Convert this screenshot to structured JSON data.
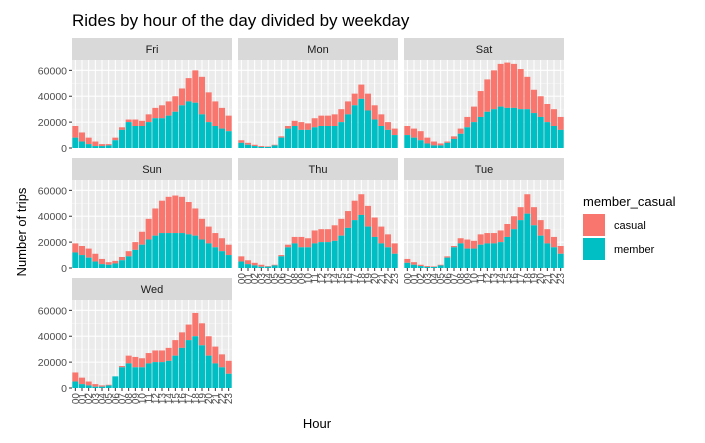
{
  "chart_data": {
    "type": "bar",
    "stacked": true,
    "faceted_by": "weekday",
    "title": "Rides by hour of the day divided by weekday",
    "xlabel": "Hour",
    "ylabel": "Number of trips",
    "ylim": [
      0,
      68000
    ],
    "yticks": [
      0,
      20000,
      40000,
      60000
    ],
    "grid": true,
    "legend": {
      "title": "member_casual",
      "position": "right",
      "items": [
        {
          "label": "casual",
          "color": "#F8766D"
        },
        {
          "label": "member",
          "color": "#00BFC4"
        }
      ]
    },
    "categories": [
      "00",
      "01",
      "02",
      "03",
      "04",
      "05",
      "06",
      "07",
      "08",
      "09",
      "10",
      "11",
      "12",
      "13",
      "14",
      "15",
      "16",
      "17",
      "18",
      "19",
      "20",
      "21",
      "22",
      "23"
    ],
    "facets": [
      {
        "name": "Fri",
        "member": [
          8000,
          5000,
          3000,
          1500,
          1500,
          2000,
          6000,
          14000,
          20000,
          17000,
          17000,
          20000,
          23000,
          23000,
          25000,
          28000,
          33000,
          36000,
          35000,
          26000,
          20000,
          17000,
          15000,
          13000
        ],
        "total": [
          17000,
          12000,
          8000,
          5000,
          3000,
          3000,
          8000,
          16000,
          22000,
          22000,
          21000,
          26000,
          31000,
          33000,
          36000,
          40000,
          46000,
          54000,
          60000,
          55000,
          43000,
          36000,
          31000,
          25000
        ]
      },
      {
        "name": "Mon",
        "member": [
          4000,
          2500,
          1500,
          800,
          800,
          2000,
          8000,
          15000,
          17000,
          14000,
          14000,
          16000,
          17000,
          17000,
          17000,
          20000,
          26000,
          33000,
          38000,
          29000,
          22000,
          17000,
          14000,
          10000
        ],
        "total": [
          6000,
          4000,
          2500,
          1500,
          1200,
          2500,
          9000,
          17000,
          21000,
          20000,
          19000,
          23000,
          25000,
          25000,
          26000,
          30000,
          36000,
          42000,
          49000,
          42000,
          33000,
          26000,
          20000,
          15000
        ]
      },
      {
        "name": "Sat",
        "member": [
          10000,
          8000,
          6000,
          3500,
          2000,
          2000,
          4000,
          7000,
          11000,
          16000,
          20000,
          24000,
          28000,
          30000,
          32000,
          31000,
          31000,
          30000,
          30000,
          27000,
          24000,
          20000,
          17000,
          14000
        ],
        "total": [
          17000,
          15000,
          13000,
          8000,
          5000,
          3500,
          5000,
          9000,
          15000,
          24000,
          32000,
          44000,
          53000,
          60000,
          65000,
          66000,
          65000,
          61000,
          55000,
          45000,
          40000,
          34000,
          30000,
          24000
        ]
      },
      {
        "name": "Sun",
        "member": [
          12000,
          10000,
          8000,
          5000,
          3000,
          2500,
          3500,
          6000,
          9000,
          14000,
          18000,
          22000,
          25000,
          27000,
          27000,
          27000,
          27000,
          26000,
          25000,
          22000,
          19000,
          16000,
          13000,
          10000
        ],
        "total": [
          19000,
          17000,
          15000,
          11000,
          7000,
          4500,
          5500,
          8500,
          13000,
          20000,
          28000,
          38000,
          46000,
          52000,
          55000,
          56000,
          55000,
          51000,
          46000,
          38000,
          32000,
          27000,
          23000,
          18000
        ]
      },
      {
        "name": "Thu",
        "member": [
          5000,
          3000,
          2000,
          1000,
          1000,
          2000,
          9000,
          16000,
          19000,
          16000,
          16000,
          19000,
          20000,
          20000,
          21000,
          25000,
          31000,
          37000,
          41000,
          32000,
          24000,
          19000,
          16000,
          11000
        ],
        "total": [
          9000,
          6000,
          4000,
          2500,
          1500,
          2500,
          10000,
          18000,
          24000,
          24000,
          23000,
          29000,
          30000,
          30000,
          33000,
          38000,
          44000,
          52000,
          57000,
          48000,
          39000,
          32000,
          26000,
          19000
        ]
      },
      {
        "name": "Tue",
        "member": [
          4000,
          2500,
          1500,
          800,
          800,
          2000,
          8000,
          16000,
          19000,
          15000,
          15000,
          18000,
          19000,
          19000,
          20000,
          24000,
          30000,
          37000,
          42000,
          33000,
          25000,
          19000,
          16000,
          11000
        ],
        "total": [
          7000,
          4500,
          2500,
          1500,
          1200,
          2500,
          9000,
          17000,
          23000,
          22000,
          21000,
          26000,
          27000,
          27000,
          29000,
          34000,
          40000,
          47000,
          57000,
          47000,
          37000,
          30000,
          24000,
          17000
        ]
      },
      {
        "name": "Wed",
        "member": [
          5000,
          3000,
          2000,
          1000,
          1000,
          2000,
          9000,
          16000,
          19000,
          16000,
          16000,
          19000,
          20000,
          20000,
          21000,
          25000,
          31000,
          37000,
          40000,
          33000,
          25000,
          19000,
          16000,
          11000
        ],
        "total": [
          12000,
          8000,
          5000,
          3000,
          2000,
          2500,
          9000,
          17000,
          25000,
          24000,
          23000,
          27000,
          29000,
          29000,
          31000,
          37000,
          43000,
          49000,
          58000,
          50000,
          40000,
          32000,
          26000,
          21000
        ]
      }
    ]
  }
}
